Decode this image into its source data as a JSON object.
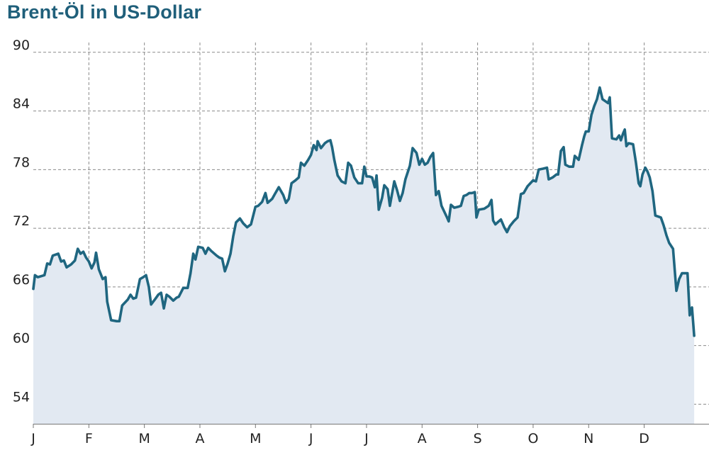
{
  "title": "Brent-Öl in US-Dollar",
  "colors": {
    "line": "#1f6680",
    "area": "#e2e9f2",
    "grid": "#8a8a8a",
    "title": "#1f5f7a"
  },
  "chart_data": {
    "type": "area",
    "title": "Brent-Öl in US-Dollar",
    "xlabel": "",
    "ylabel": "",
    "x_ticks": [
      "J",
      "F",
      "M",
      "A",
      "M",
      "J",
      "J",
      "A",
      "S",
      "O",
      "N",
      "D"
    ],
    "y_ticks": [
      54,
      60,
      66,
      72,
      78,
      84,
      90
    ],
    "ylim": [
      52,
      91
    ],
    "xlim": [
      0,
      11.95
    ],
    "grid": true,
    "series": [
      {
        "points": [
          [
            0.0,
            65.8
          ],
          [
            0.03,
            67.2
          ],
          [
            0.08,
            67.0
          ],
          [
            0.2,
            67.2
          ],
          [
            0.25,
            68.4
          ],
          [
            0.3,
            68.3
          ],
          [
            0.35,
            69.2
          ],
          [
            0.45,
            69.4
          ],
          [
            0.5,
            68.6
          ],
          [
            0.55,
            68.7
          ],
          [
            0.6,
            68.0
          ],
          [
            0.68,
            68.3
          ],
          [
            0.75,
            68.7
          ],
          [
            0.8,
            69.9
          ],
          [
            0.85,
            69.4
          ],
          [
            0.9,
            69.6
          ],
          [
            0.95,
            69.0
          ],
          [
            1.0,
            68.6
          ],
          [
            1.05,
            67.9
          ],
          [
            1.1,
            68.5
          ],
          [
            1.13,
            69.5
          ],
          [
            1.18,
            67.8
          ],
          [
            1.25,
            66.8
          ],
          [
            1.3,
            67.0
          ],
          [
            1.33,
            64.5
          ],
          [
            1.4,
            62.6
          ],
          [
            1.5,
            62.5
          ],
          [
            1.55,
            62.5
          ],
          [
            1.6,
            64.1
          ],
          [
            1.7,
            64.7
          ],
          [
            1.75,
            65.2
          ],
          [
            1.8,
            64.8
          ],
          [
            1.85,
            64.9
          ],
          [
            1.92,
            66.8
          ],
          [
            1.98,
            67.0
          ],
          [
            2.03,
            67.2
          ],
          [
            2.08,
            66.0
          ],
          [
            2.12,
            64.2
          ],
          [
            2.2,
            64.8
          ],
          [
            2.25,
            65.2
          ],
          [
            2.3,
            65.4
          ],
          [
            2.35,
            63.8
          ],
          [
            2.4,
            65.2
          ],
          [
            2.45,
            65.0
          ],
          [
            2.52,
            64.6
          ],
          [
            2.58,
            64.9
          ],
          [
            2.62,
            65.0
          ],
          [
            2.7,
            65.9
          ],
          [
            2.78,
            65.9
          ],
          [
            2.83,
            67.4
          ],
          [
            2.88,
            69.4
          ],
          [
            2.92,
            68.8
          ],
          [
            2.97,
            70.1
          ],
          [
            3.05,
            70.0
          ],
          [
            3.1,
            69.4
          ],
          [
            3.15,
            70.0
          ],
          [
            3.2,
            69.7
          ],
          [
            3.3,
            69.2
          ],
          [
            3.35,
            69.0
          ],
          [
            3.4,
            68.9
          ],
          [
            3.45,
            67.6
          ],
          [
            3.5,
            68.4
          ],
          [
            3.55,
            69.4
          ],
          [
            3.6,
            71.2
          ],
          [
            3.65,
            72.6
          ],
          [
            3.72,
            73.0
          ],
          [
            3.78,
            72.5
          ],
          [
            3.85,
            72.1
          ],
          [
            3.92,
            72.4
          ],
          [
            4.0,
            74.2
          ],
          [
            4.05,
            74.3
          ],
          [
            4.12,
            74.7
          ],
          [
            4.18,
            75.6
          ],
          [
            4.22,
            74.6
          ],
          [
            4.3,
            75.0
          ],
          [
            4.35,
            75.5
          ],
          [
            4.42,
            76.2
          ],
          [
            4.5,
            75.4
          ],
          [
            4.55,
            74.6
          ],
          [
            4.6,
            75.0
          ],
          [
            4.65,
            76.6
          ],
          [
            4.72,
            76.9
          ],
          [
            4.78,
            77.2
          ],
          [
            4.82,
            78.7
          ],
          [
            4.88,
            78.4
          ],
          [
            4.95,
            79.0
          ],
          [
            5.0,
            79.5
          ],
          [
            5.05,
            80.5
          ],
          [
            5.1,
            80.0
          ],
          [
            5.12,
            80.9
          ],
          [
            5.18,
            80.2
          ],
          [
            5.25,
            80.7
          ],
          [
            5.3,
            80.9
          ],
          [
            5.35,
            81.0
          ],
          [
            5.38,
            80.3
          ],
          [
            5.42,
            79.0
          ],
          [
            5.48,
            77.4
          ],
          [
            5.55,
            76.8
          ],
          [
            5.62,
            76.6
          ],
          [
            5.67,
            78.7
          ],
          [
            5.72,
            78.4
          ],
          [
            5.78,
            77.2
          ],
          [
            5.85,
            76.6
          ],
          [
            5.92,
            76.6
          ],
          [
            5.96,
            78.3
          ],
          [
            6.0,
            77.3
          ],
          [
            6.05,
            77.3
          ],
          [
            6.1,
            77.2
          ],
          [
            6.15,
            76.2
          ],
          [
            6.18,
            77.4
          ],
          [
            6.22,
            73.9
          ],
          [
            6.28,
            75.1
          ],
          [
            6.32,
            76.4
          ],
          [
            6.38,
            76.0
          ],
          [
            6.42,
            74.3
          ],
          [
            6.5,
            76.8
          ],
          [
            6.55,
            75.9
          ],
          [
            6.6,
            74.8
          ],
          [
            6.65,
            75.6
          ],
          [
            6.7,
            77.0
          ],
          [
            6.78,
            78.4
          ],
          [
            6.83,
            80.2
          ],
          [
            6.9,
            79.7
          ],
          [
            6.95,
            78.5
          ],
          [
            7.0,
            79.1
          ],
          [
            7.05,
            78.5
          ],
          [
            7.1,
            78.7
          ],
          [
            7.15,
            79.3
          ],
          [
            7.2,
            79.7
          ],
          [
            7.25,
            75.4
          ],
          [
            7.3,
            75.8
          ],
          [
            7.35,
            74.3
          ],
          [
            7.45,
            73.1
          ],
          [
            7.48,
            72.7
          ],
          [
            7.52,
            74.4
          ],
          [
            7.58,
            74.1
          ],
          [
            7.65,
            74.2
          ],
          [
            7.7,
            74.3
          ],
          [
            7.75,
            75.3
          ],
          [
            7.8,
            75.4
          ],
          [
            7.85,
            75.6
          ],
          [
            7.9,
            75.6
          ],
          [
            7.95,
            75.7
          ],
          [
            7.98,
            73.1
          ],
          [
            8.02,
            73.9
          ],
          [
            8.12,
            74.0
          ],
          [
            8.2,
            74.3
          ],
          [
            8.25,
            74.9
          ],
          [
            8.28,
            72.8
          ],
          [
            8.32,
            72.4
          ],
          [
            8.38,
            72.7
          ],
          [
            8.42,
            72.9
          ],
          [
            8.48,
            72.1
          ],
          [
            8.53,
            71.6
          ],
          [
            8.58,
            72.2
          ],
          [
            8.65,
            72.7
          ],
          [
            8.72,
            73.1
          ],
          [
            8.78,
            75.5
          ],
          [
            8.83,
            75.6
          ],
          [
            8.9,
            76.3
          ],
          [
            8.95,
            76.6
          ],
          [
            9.0,
            76.9
          ],
          [
            9.05,
            76.8
          ],
          [
            9.1,
            78.0
          ],
          [
            9.18,
            78.1
          ],
          [
            9.25,
            78.2
          ],
          [
            9.28,
            77.0
          ],
          [
            9.35,
            77.2
          ],
          [
            9.42,
            77.5
          ],
          [
            9.45,
            77.5
          ],
          [
            9.5,
            79.9
          ],
          [
            9.55,
            80.3
          ],
          [
            9.58,
            78.5
          ],
          [
            9.65,
            78.3
          ],
          [
            9.72,
            78.3
          ],
          [
            9.75,
            79.4
          ],
          [
            9.82,
            79.0
          ],
          [
            9.88,
            80.5
          ],
          [
            9.92,
            81.4
          ],
          [
            9.95,
            81.9
          ],
          [
            10.0,
            81.9
          ],
          [
            10.05,
            83.6
          ],
          [
            10.1,
            84.5
          ],
          [
            10.15,
            85.2
          ],
          [
            10.2,
            86.4
          ],
          [
            10.25,
            85.2
          ],
          [
            10.3,
            85.0
          ],
          [
            10.35,
            84.8
          ],
          [
            10.38,
            85.4
          ],
          [
            10.42,
            81.2
          ],
          [
            10.5,
            81.1
          ],
          [
            10.55,
            81.5
          ],
          [
            10.58,
            81.0
          ],
          [
            10.62,
            81.7
          ],
          [
            10.65,
            82.1
          ],
          [
            10.68,
            80.4
          ],
          [
            10.72,
            80.7
          ],
          [
            10.8,
            80.6
          ],
          [
            10.85,
            78.8
          ],
          [
            10.9,
            76.6
          ],
          [
            10.93,
            76.3
          ],
          [
            10.97,
            77.5
          ],
          [
            11.02,
            78.2
          ],
          [
            11.06,
            77.8
          ],
          [
            11.1,
            77.2
          ],
          [
            11.15,
            75.8
          ],
          [
            11.2,
            73.3
          ],
          [
            11.25,
            73.2
          ],
          [
            11.3,
            73.1
          ],
          [
            11.35,
            72.3
          ],
          [
            11.4,
            71.3
          ],
          [
            11.45,
            70.5
          ],
          [
            11.52,
            69.9
          ],
          [
            11.58,
            65.6
          ],
          [
            11.63,
            66.8
          ],
          [
            11.68,
            67.4
          ],
          [
            11.73,
            67.4
          ],
          [
            11.78,
            67.4
          ],
          [
            11.82,
            63.1
          ],
          [
            11.86,
            63.9
          ],
          [
            11.9,
            61.0
          ]
        ]
      }
    ]
  }
}
